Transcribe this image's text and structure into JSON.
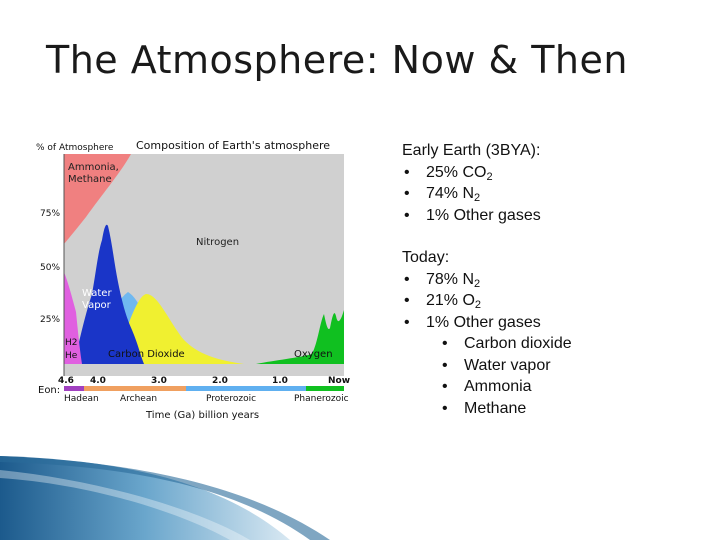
{
  "slide": {
    "title": "The Atmosphere: Now & Then"
  },
  "figure": {
    "title": "Composition of Earth's atmosphere",
    "y_label": "% of Atmosphere",
    "y_ticks": [
      "75%",
      "50%",
      "25%"
    ],
    "x_label": "Time (Ga) billion years",
    "x_ticks": [
      "4.6",
      "4.0",
      "3.0",
      "2.0",
      "1.0",
      "Now"
    ],
    "eon_label": "Eon:",
    "eons": [
      "Hadean",
      "Archean",
      "Proterozoic",
      "Phanerozoic"
    ],
    "regions": {
      "ammonia_methane": [
        "Ammonia,",
        "Methane"
      ],
      "nitrogen": "Nitrogen",
      "water_vapor": [
        "Water",
        "Vapor"
      ],
      "h2_he": [
        "H2",
        "He"
      ],
      "carbon_dioxide": "Carbon Dioxide",
      "oxygen": "Oxygen"
    },
    "colors": {
      "background": "#d3d3d3",
      "ammonia_methane": "#f08080",
      "nitrogen": "#d0d0d0",
      "water_vapor": "#1a35c8",
      "h2_he": "#e060e0",
      "carbon_dioxide": "#f0f030",
      "light_blue": "#70b8f0",
      "oxygen": "#10c020",
      "hadean": "#a040c0",
      "archean": "#f0a060",
      "proterozoic": "#60b0f0",
      "phanerozoic": "#10c020"
    }
  },
  "early_earth": {
    "heading": "Early Earth (3BYA):",
    "items": [
      {
        "text": "25% CO",
        "sub": "2"
      },
      {
        "text": "74% N",
        "sub": "2"
      },
      {
        "text": "1% Other gases",
        "sub": ""
      }
    ]
  },
  "today": {
    "heading": "Today:",
    "items": [
      {
        "text": "78% N",
        "sub": "2"
      },
      {
        "text": "21% O",
        "sub": "2"
      },
      {
        "text": "1% Other gases",
        "sub": ""
      }
    ],
    "other_gases": [
      "Carbon dioxide",
      "Water vapor",
      "Ammonia",
      "Methane"
    ]
  }
}
